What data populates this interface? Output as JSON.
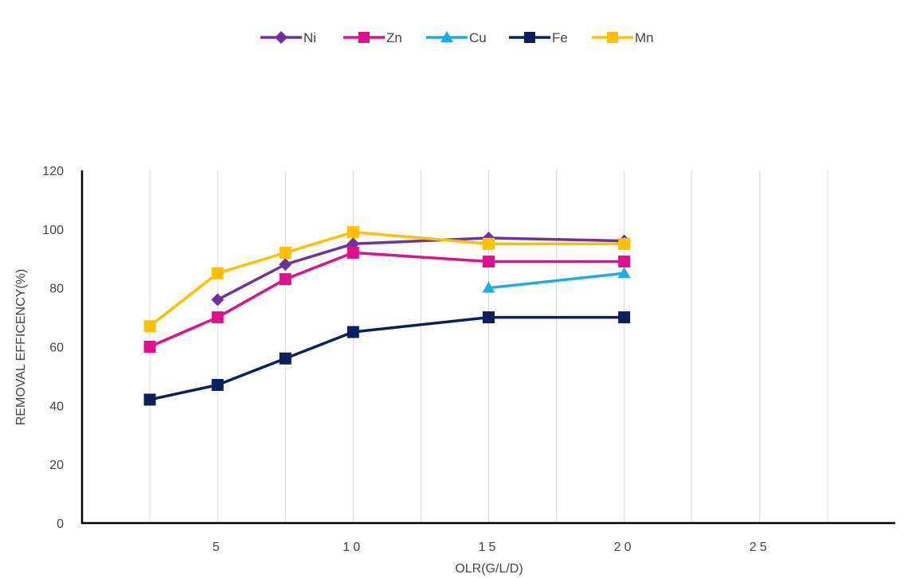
{
  "chart_data": {
    "type": "line",
    "xlabel": "OLR(G/L/D)",
    "ylabel": "REMOVAL EFFICENCY(%)",
    "x_ticks": [
      {
        "value": 5,
        "label": "5"
      },
      {
        "value": 10,
        "label": "10"
      },
      {
        "value": 15,
        "label": "15"
      },
      {
        "value": 20,
        "label": "20"
      },
      {
        "value": 25,
        "label": "25"
      }
    ],
    "xlim": [
      0,
      30
    ],
    "ylim": [
      0,
      120
    ],
    "y_ticks": [
      0,
      20,
      40,
      60,
      80,
      100,
      120
    ],
    "grid": {
      "vertical": true,
      "horizontal": false
    },
    "legend_position": "top-center",
    "series": [
      {
        "name": "Ni",
        "color": "#7030A0",
        "marker": "diamond",
        "points": [
          [
            5,
            76
          ],
          [
            7.5,
            88
          ],
          [
            10,
            95
          ],
          [
            15,
            97
          ],
          [
            20,
            96
          ]
        ]
      },
      {
        "name": "Zn",
        "color": "#E0108C",
        "marker": "square",
        "points": [
          [
            2.5,
            60
          ],
          [
            5,
            70
          ],
          [
            7.5,
            83
          ],
          [
            10,
            92
          ],
          [
            15,
            89
          ],
          [
            20,
            89
          ]
        ]
      },
      {
        "name": "Cu",
        "color": "#1AAEE8",
        "marker": "triangle",
        "points": [
          [
            15,
            80
          ],
          [
            20,
            85
          ]
        ]
      },
      {
        "name": "Fe",
        "color": "#0D1F5C",
        "marker": "square",
        "points": [
          [
            2.5,
            42
          ],
          [
            5,
            47
          ],
          [
            7.5,
            56
          ],
          [
            10,
            65
          ],
          [
            15,
            70
          ],
          [
            20,
            70
          ]
        ]
      },
      {
        "name": "Mn",
        "color": "#FFC000",
        "marker": "square",
        "points": [
          [
            2.5,
            67
          ],
          [
            5,
            85
          ],
          [
            7.5,
            92
          ],
          [
            10,
            99
          ],
          [
            15,
            95
          ],
          [
            20,
            95
          ]
        ]
      }
    ]
  }
}
